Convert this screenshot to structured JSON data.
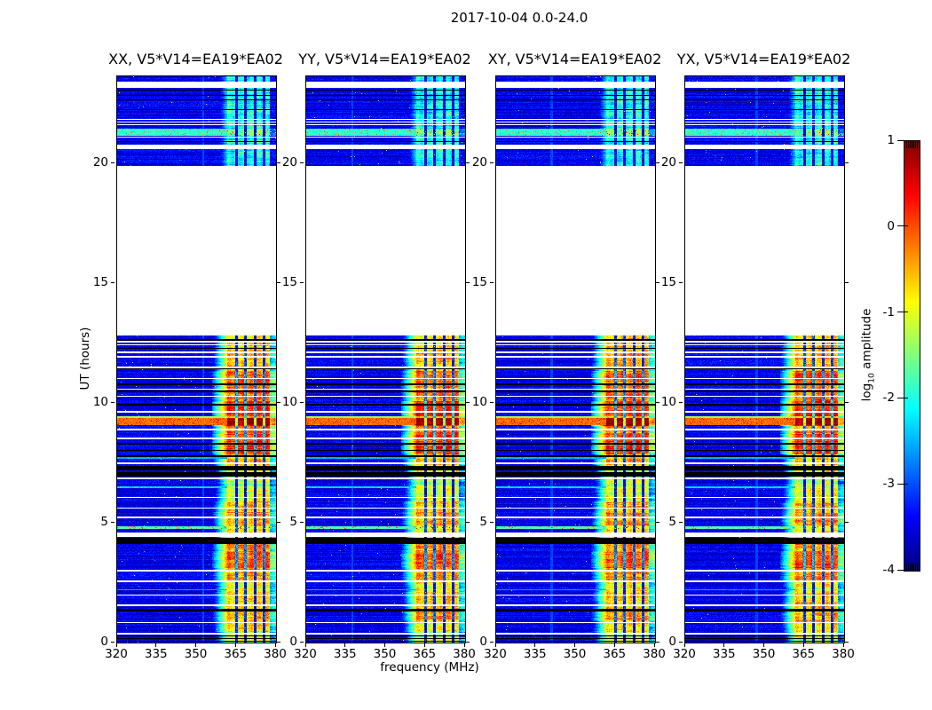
{
  "title": "2017-10-04 0.0-24.0",
  "chart_data": {
    "type": "heatmap",
    "title": "2017-10-04 0.0-24.0",
    "xlabel": "frequency (MHz)",
    "ylabel": "UT (hours)",
    "colormap": "jet",
    "clim": [
      -4,
      1
    ],
    "x_range_mhz": [
      320,
      380
    ],
    "y_range_hours": [
      0,
      23.65
    ],
    "xticks": [
      320,
      335,
      350,
      365,
      380
    ],
    "xtick_labels": [
      "320",
      "335",
      "350",
      "365",
      "380"
    ],
    "yticks": [
      0,
      5,
      10,
      15,
      20
    ],
    "ytick_labels": [
      "0",
      "5",
      "10",
      "15",
      "20"
    ],
    "panels": [
      {
        "label": "XX, V5*V14=EA19*EA02",
        "seed": 101,
        "faint_col_mhz": 352.5
      },
      {
        "label": "YY, V5*V14=EA19*EA02",
        "seed": 202,
        "faint_col_mhz": 337.5
      },
      {
        "label": "XY, V5*V14=EA19*EA02",
        "seed": 303,
        "faint_col_mhz": 341.0
      },
      {
        "label": "YX, V5*V14=EA19*EA02",
        "seed": 404,
        "faint_col_mhz": 347.0
      }
    ],
    "colorbar": {
      "label_main": "log",
      "label_sub": "10",
      "label_rest": " amplitude",
      "tick_values": [
        1,
        0,
        -1,
        -2,
        -3,
        -4
      ],
      "tick_labels": [
        "1",
        "0",
        "-1",
        "-2",
        "-3",
        "-4"
      ]
    },
    "noise_floor_log": -3.75,
    "time_blocks": [
      [
        0,
        12.82
      ],
      [
        19.92,
        23.65
      ]
    ],
    "rfi_band": {
      "f_start_mhz": 361.5,
      "shoulder_start_mhz": 356.0,
      "dark_lines_mhz": [
        365.0,
        368.6,
        372.2,
        375.6
      ],
      "cyan_edge_start_mhz": 377.6
    },
    "band_envelope_log": [
      [
        0.0,
        0.45,
        -1.15
      ],
      [
        0.45,
        0.9,
        -0.75
      ],
      [
        0.9,
        1.35,
        -0.45
      ],
      [
        1.35,
        2.1,
        -0.7
      ],
      [
        2.1,
        2.55,
        -0.95
      ],
      [
        2.55,
        3.1,
        -0.35
      ],
      [
        3.1,
        3.8,
        -0.05
      ],
      [
        3.8,
        4.25,
        -0.35
      ],
      [
        4.25,
        4.55,
        -1.0
      ],
      [
        4.55,
        4.9,
        -0.8
      ],
      [
        4.9,
        5.45,
        -0.35
      ],
      [
        5.45,
        5.9,
        -0.55
      ],
      [
        5.9,
        6.5,
        -1.05
      ],
      [
        6.5,
        6.95,
        -1.3
      ],
      [
        6.95,
        7.4,
        -0.9
      ],
      [
        7.4,
        7.85,
        -0.6
      ],
      [
        7.85,
        8.7,
        0.15
      ],
      [
        8.7,
        9.05,
        -0.15
      ],
      [
        9.05,
        9.45,
        0.5
      ],
      [
        9.45,
        10.1,
        0.2
      ],
      [
        10.1,
        10.7,
        -0.2
      ],
      [
        10.7,
        11.35,
        -0.1
      ],
      [
        11.35,
        12.35,
        -0.6
      ],
      [
        12.35,
        12.82,
        -0.75
      ],
      [
        19.92,
        23.65,
        -2.1
      ]
    ],
    "white_rows_hours": [
      [
        12.54,
        12.6
      ],
      [
        12.4,
        12.47
      ],
      [
        12.1,
        12.16
      ],
      [
        11.9,
        11.96
      ],
      [
        11.46,
        11.52
      ],
      [
        11.0,
        11.06
      ],
      [
        10.56,
        10.62
      ],
      [
        10.25,
        10.3
      ],
      [
        9.6,
        9.66
      ],
      [
        8.86,
        8.92
      ],
      [
        8.5,
        8.56
      ],
      [
        7.46,
        7.52
      ],
      [
        6.83,
        6.89
      ],
      [
        6.03,
        6.09
      ],
      [
        5.58,
        5.64
      ],
      [
        5.2,
        5.26
      ],
      [
        4.41,
        4.58
      ],
      [
        2.98,
        3.04
      ],
      [
        2.53,
        2.59
      ],
      [
        1.96,
        2.02
      ],
      [
        1.53,
        1.59
      ],
      [
        0.8,
        0.86
      ],
      [
        0.33,
        0.4
      ],
      [
        23.18,
        23.42
      ],
      [
        21.84,
        21.88
      ],
      [
        21.72,
        21.76
      ],
      [
        21.6,
        21.64
      ],
      [
        21.08,
        21.13
      ],
      [
        20.62,
        20.8
      ]
    ],
    "black_rows_hours": [
      [
        12.62,
        12.66
      ],
      [
        12.28,
        12.32
      ],
      [
        11.4,
        11.44
      ],
      [
        10.76,
        10.84
      ],
      [
        10.46,
        10.52
      ],
      [
        9.88,
        9.98
      ],
      [
        8.26,
        8.33
      ],
      [
        8.0,
        8.05
      ],
      [
        7.76,
        7.81
      ],
      [
        6.95,
        7.12
      ],
      [
        7.18,
        7.38
      ],
      [
        4.11,
        4.37
      ],
      [
        1.28,
        1.4
      ],
      [
        0.04,
        0.08
      ],
      [
        0.14,
        0.18
      ],
      [
        0.27,
        0.31
      ],
      [
        23.04,
        23.08
      ],
      [
        22.82,
        22.87
      ],
      [
        22.66,
        22.7
      ],
      [
        22.25,
        22.29
      ],
      [
        20.9,
        20.96
      ]
    ],
    "stripe_rows": [
      {
        "h0": 9.08,
        "h1": 9.36,
        "v": -0.15,
        "bv": 0.85,
        "sp": 0.6
      },
      {
        "h0": 9.36,
        "h1": 9.44,
        "v": -1.3,
        "bv": -0.5,
        "sp": 0
      },
      {
        "h0": 21.18,
        "h1": 21.48,
        "v": -1.9,
        "bv": -1.55,
        "sp": 1.7
      },
      {
        "h0": 4.76,
        "h1": 4.86,
        "v": -1.75,
        "bv": -1.0,
        "sp": 1.7
      },
      {
        "h0": 6.45,
        "h1": 6.52,
        "v": -2.35,
        "bv": -1.1,
        "sp": 0
      },
      {
        "h0": 7.68,
        "h1": 7.73,
        "v": -2.5,
        "bv": -0.7,
        "sp": 0
      },
      {
        "h0": 2.18,
        "h1": 2.24,
        "v": -2.6,
        "bv": -0.8,
        "sp": 0
      }
    ]
  }
}
